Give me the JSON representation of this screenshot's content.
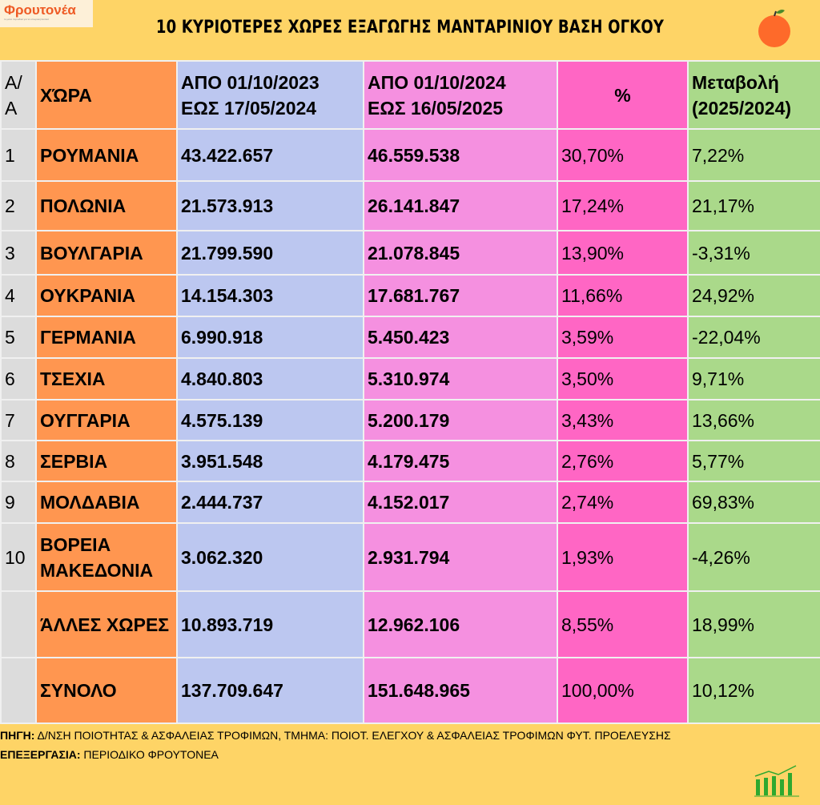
{
  "logo": {
    "name": "Φρουτονέα",
    "tagline": "το μόνο περιοδικό για τα οπωροκηπευτικά"
  },
  "title": "10 ΚΥΡΙΟΤΕΡΕΣ ΧΩΡΕΣ ΕΞΑΓΩΓΗΣ ΜΑΝΤΑΡΙΝΙΟΥ ΒΑΣΗ ΟΓΚΟΥ",
  "headers": {
    "rank": "Α/Α",
    "country": "ΧΏΡΑ",
    "period1_line1": "ΑΠΟ 01/10/2023",
    "period1_line2": "ΕΩΣ 17/05/2024",
    "period2_line1": "ΑΠΟ 01/10/2024",
    "period2_line2": "ΕΩΣ  16/05/2025",
    "share": "%",
    "change_line1": "Μεταβολή",
    "change_line2": "(2025/2024)"
  },
  "rows": [
    {
      "rank": "1",
      "country": "ΡΟΥΜΑΝΙΑ",
      "p1": "43.422.657",
      "p2": "46.559.538",
      "share": "30,70%",
      "change": "7,22%"
    },
    {
      "rank": "2",
      "country": "ΠΟΛΩΝΙΑ",
      "p1": "21.573.913",
      "p2": "26.141.847",
      "share": "17,24%",
      "change": "21,17%"
    },
    {
      "rank": "3",
      "country": "ΒΟΥΛΓΑΡΙΑ",
      "p1": "21.799.590",
      "p2": "21.078.845",
      "share": "13,90%",
      "change": "-3,31%"
    },
    {
      "rank": "4",
      "country": "ΟΥΚΡΑΝΙΑ",
      "p1": "14.154.303",
      "p2": "17.681.767",
      "share": "11,66%",
      "change": "24,92%"
    },
    {
      "rank": "5",
      "country": "ΓΕΡΜΑΝΙΑ",
      "p1": "6.990.918",
      "p2": "5.450.423",
      "share": "3,59%",
      "change": "-22,04%"
    },
    {
      "rank": "6",
      "country": "ΤΣΕΧΙΑ",
      "p1": "4.840.803",
      "p2": "5.310.974",
      "share": "3,50%",
      "change": "9,71%"
    },
    {
      "rank": "7",
      "country": "ΟΥΓΓΑΡΙΑ",
      "p1": "4.575.139",
      "p2": "5.200.179",
      "share": "3,43%",
      "change": "13,66%"
    },
    {
      "rank": "8",
      "country": "ΣΕΡΒΙΑ",
      "p1": "3.951.548",
      "p2": "4.179.475",
      "share": "2,76%",
      "change": "5,77%"
    },
    {
      "rank": "9",
      "country": "ΜΟΛΔΑΒΙΑ",
      "p1": "2.444.737",
      "p2": "4.152.017",
      "share": "2,74%",
      "change": "69,83%"
    },
    {
      "rank": "10",
      "country": "ΒΟΡΕΙΑ ΜΑΚΕΔΟΝΙΑ",
      "p1": "3.062.320",
      "p2": "2.931.794",
      "share": "1,93%",
      "change": "-4,26%"
    },
    {
      "rank": "",
      "country": "ΆΛΛΕΣ ΧΩΡΕΣ",
      "p1": "10.893.719",
      "p2": "12.962.106",
      "share": "8,55%",
      "change": "18,99%"
    },
    {
      "rank": "",
      "country": "ΣΥΝΟΛΟ",
      "p1": "137.709.647",
      "p2": "151.648.965",
      "share": "100,00%",
      "change": "10,12%"
    }
  ],
  "footer": {
    "source_label": "ΠΗΓΗ:",
    "source": " Δ/ΝΣΗ ΠΟΙΟΤΗΤΑΣ & ΑΣΦΑΛΕΙΑΣ ΤΡΟΦΙΜΩΝ, ΤΜΗΜΑ: ΠΟΙΟΤ. ΕΛΕΓΧΟΥ & ΑΣΦΑΛΕΙΑΣ ΤΡΟΦΙΜΩΝ ΦΥΤ. ΠΡΟΕΛΕΥΣΗΣ",
    "processing_label": "ΕΠΕΞΕΡΓΑΣΙΑ:",
    "processing": " ΠΕΡΙΟΔΙΚΟ ΦΡΟΥΤΟΝΕΑ"
  }
}
